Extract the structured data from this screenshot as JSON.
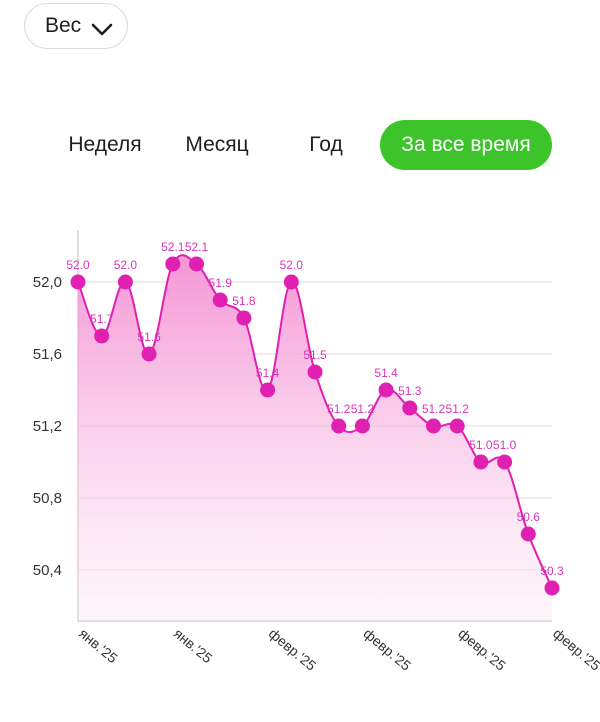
{
  "metric_select": {
    "label": "Вес"
  },
  "tabs": [
    {
      "label": "Неделя",
      "active": false
    },
    {
      "label": "Месяц",
      "active": false
    },
    {
      "label": "Год",
      "active": false
    },
    {
      "label": "За все время",
      "active": true
    }
  ],
  "colors": {
    "accent": "#3dc42a",
    "series": "#e020b0",
    "fill_top": "#f48fd2"
  },
  "chart_data": {
    "type": "area",
    "title": "",
    "xlabel": "",
    "ylabel": "",
    "ylim": [
      50.3,
      52.3
    ],
    "yticks": [
      50.4,
      50.8,
      51.2,
      51.6,
      52.0
    ],
    "ytick_labels": [
      "50,4",
      "50,8",
      "51,2",
      "51,6",
      "52,0"
    ],
    "xtick_labels": [
      "янв.'25",
      "янв.'25",
      "февр.'25",
      "февр.'25",
      "февр.'25",
      "февр.'25"
    ],
    "grid": true,
    "series": [
      {
        "values": [
          52.0,
          51.7,
          52.0,
          51.6,
          52.1,
          52.1,
          51.9,
          51.8,
          51.4,
          52.0,
          51.5,
          51.2,
          51.2,
          51.4,
          51.3,
          51.2,
          51.2,
          51.0,
          51.0,
          50.6,
          50.3
        ]
      }
    ],
    "data_labels": [
      "52.0",
      "51.7",
      "52.0",
      "51.6",
      "52.1",
      "52.1",
      "51.9",
      "51.8",
      "51.4",
      "52.0",
      "51.5",
      "51.2",
      "51.2",
      "51.4",
      "51.3",
      "51.2",
      "51.2",
      "51.0",
      "51.0",
      "50.6",
      "50.3"
    ]
  }
}
